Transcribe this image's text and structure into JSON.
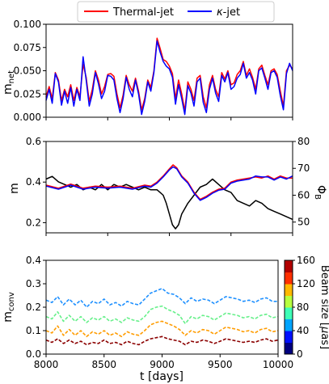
{
  "chart_data": [
    {
      "type": "line",
      "ylabel": "m",
      "ylabel_sub": "net",
      "xlim": [
        8000,
        10000
      ],
      "ylim": [
        0,
        0.1
      ],
      "yticks": [
        0.0,
        0.025,
        0.05,
        0.075,
        0.1
      ],
      "ytick_labels": [
        "0.000",
        "0.025",
        "0.050",
        "0.075",
        "0.100"
      ],
      "legend": {
        "position": "top-center",
        "entries": [
          {
            "label": "Thermal-jet",
            "color": "#ff0000"
          },
          {
            "label_greek": "κ",
            "label": "-jet",
            "color": "#0000ff"
          }
        ]
      },
      "series": [
        {
          "name": "Thermal-jet",
          "color": "#ff0000",
          "x": [
            8000,
            8025,
            8050,
            8075,
            8100,
            8125,
            8150,
            8175,
            8200,
            8225,
            8250,
            8275,
            8300,
            8325,
            8350,
            8375,
            8400,
            8425,
            8450,
            8475,
            8500,
            8525,
            8550,
            8575,
            8600,
            8625,
            8650,
            8675,
            8700,
            8725,
            8750,
            8775,
            8800,
            8825,
            8850,
            8875,
            8900,
            8925,
            8950,
            8975,
            9000,
            9025,
            9050,
            9075,
            9100,
            9125,
            9150,
            9175,
            9200,
            9225,
            9250,
            9275,
            9300,
            9325,
            9350,
            9375,
            9400,
            9425,
            9450,
            9475,
            9500,
            9525,
            9550,
            9575,
            9600,
            9625,
            9650,
            9675,
            9700,
            9725,
            9750,
            9775,
            9800,
            9825,
            9850,
            9875,
            9900,
            9925,
            9950,
            9975,
            10000
          ],
          "values": [
            0.022,
            0.033,
            0.02,
            0.048,
            0.04,
            0.018,
            0.03,
            0.022,
            0.035,
            0.018,
            0.032,
            0.022,
            0.057,
            0.043,
            0.017,
            0.03,
            0.05,
            0.04,
            0.025,
            0.033,
            0.046,
            0.047,
            0.044,
            0.025,
            0.01,
            0.024,
            0.045,
            0.035,
            0.028,
            0.042,
            0.028,
            0.008,
            0.02,
            0.04,
            0.032,
            0.05,
            0.085,
            0.074,
            0.062,
            0.06,
            0.055,
            0.047,
            0.02,
            0.04,
            0.025,
            0.007,
            0.038,
            0.03,
            0.018,
            0.042,
            0.045,
            0.022,
            0.01,
            0.035,
            0.045,
            0.03,
            0.022,
            0.048,
            0.041,
            0.05,
            0.035,
            0.037,
            0.046,
            0.05,
            0.06,
            0.045,
            0.052,
            0.043,
            0.03,
            0.052,
            0.056,
            0.045,
            0.035,
            0.05,
            0.052,
            0.046,
            0.028,
            0.012,
            0.05,
            0.056,
            0.052
          ]
        },
        {
          "name": "-jet",
          "color": "#0000ff",
          "x": [
            8000,
            8025,
            8050,
            8075,
            8100,
            8125,
            8150,
            8175,
            8200,
            8225,
            8250,
            8275,
            8300,
            8325,
            8350,
            8375,
            8400,
            8425,
            8450,
            8475,
            8500,
            8525,
            8550,
            8575,
            8600,
            8625,
            8650,
            8675,
            8700,
            8725,
            8750,
            8775,
            8800,
            8825,
            8850,
            8875,
            8900,
            8925,
            8950,
            8975,
            9000,
            9025,
            9050,
            9075,
            9100,
            9125,
            9150,
            9175,
            9200,
            9225,
            9250,
            9275,
            9300,
            9325,
            9350,
            9375,
            9400,
            9425,
            9450,
            9475,
            9500,
            9525,
            9550,
            9575,
            9600,
            9625,
            9650,
            9675,
            9700,
            9725,
            9750,
            9775,
            9800,
            9825,
            9850,
            9875,
            9900,
            9925,
            9950,
            9975,
            10000
          ],
          "values": [
            0.018,
            0.03,
            0.015,
            0.047,
            0.038,
            0.013,
            0.028,
            0.015,
            0.032,
            0.012,
            0.03,
            0.018,
            0.065,
            0.04,
            0.012,
            0.025,
            0.048,
            0.036,
            0.02,
            0.028,
            0.045,
            0.044,
            0.04,
            0.02,
            0.005,
            0.02,
            0.043,
            0.03,
            0.022,
            0.04,
            0.025,
            0.003,
            0.017,
            0.038,
            0.028,
            0.048,
            0.082,
            0.07,
            0.06,
            0.055,
            0.052,
            0.043,
            0.014,
            0.035,
            0.02,
            0.003,
            0.034,
            0.026,
            0.012,
            0.038,
            0.042,
            0.016,
            0.005,
            0.03,
            0.042,
            0.026,
            0.017,
            0.045,
            0.038,
            0.048,
            0.03,
            0.033,
            0.042,
            0.046,
            0.058,
            0.042,
            0.048,
            0.04,
            0.025,
            0.05,
            0.053,
            0.042,
            0.03,
            0.048,
            0.05,
            0.043,
            0.023,
            0.008,
            0.047,
            0.058,
            0.05
          ]
        }
      ]
    },
    {
      "type": "line",
      "ylabel": "m",
      "ylabel_right": "Φ",
      "ylabel_right_sub": "B",
      "xlim": [
        8000,
        10000
      ],
      "ylim": [
        0.15,
        0.6
      ],
      "yticks": [
        0.2,
        0.4,
        0.6
      ],
      "ytick_labels": [
        "0.2",
        "0.4",
        "0.6"
      ],
      "ylim_right": [
        46,
        80
      ],
      "yticks_right": [
        50,
        60,
        70,
        80
      ],
      "ytick_labels_right": [
        "50",
        "60",
        "70",
        "80"
      ],
      "series": [
        {
          "name": "Thermal-jet m",
          "color": "#ff0000",
          "axis": "left",
          "x": [
            8000,
            8100,
            8200,
            8300,
            8400,
            8500,
            8600,
            8700,
            8800,
            8850,
            8900,
            8950,
            9000,
            9030,
            9060,
            9100,
            9150,
            9200,
            9250,
            9300,
            9350,
            9400,
            9450,
            9500,
            9550,
            9600,
            9650,
            9700,
            9750,
            9800,
            9850,
            9900,
            9950,
            10000
          ],
          "values": [
            0.385,
            0.37,
            0.39,
            0.37,
            0.38,
            0.375,
            0.38,
            0.37,
            0.385,
            0.38,
            0.4,
            0.43,
            0.465,
            0.485,
            0.47,
            0.43,
            0.4,
            0.35,
            0.315,
            0.33,
            0.35,
            0.365,
            0.37,
            0.4,
            0.41,
            0.415,
            0.42,
            0.425,
            0.42,
            0.43,
            0.415,
            0.43,
            0.42,
            0.42
          ]
        },
        {
          "name": "κ-jet m",
          "color": "#0000ff",
          "axis": "left",
          "x": [
            8000,
            8100,
            8200,
            8300,
            8400,
            8500,
            8600,
            8700,
            8800,
            8850,
            8900,
            8950,
            9000,
            9030,
            9060,
            9100,
            9150,
            9200,
            9250,
            9300,
            9350,
            9400,
            9450,
            9500,
            9550,
            9600,
            9650,
            9700,
            9750,
            9800,
            9850,
            9900,
            9950,
            10000
          ],
          "values": [
            0.38,
            0.365,
            0.385,
            0.365,
            0.375,
            0.37,
            0.375,
            0.365,
            0.38,
            0.375,
            0.395,
            0.425,
            0.46,
            0.475,
            0.465,
            0.425,
            0.395,
            0.345,
            0.31,
            0.325,
            0.345,
            0.36,
            0.365,
            0.395,
            0.405,
            0.41,
            0.415,
            0.43,
            0.425,
            0.425,
            0.41,
            0.425,
            0.415,
            0.43
          ]
        },
        {
          "name": "Φ_B",
          "color": "#000000",
          "axis": "right",
          "x": [
            8000,
            8050,
            8100,
            8150,
            8200,
            8250,
            8300,
            8350,
            8400,
            8450,
            8500,
            8550,
            8600,
            8650,
            8700,
            8750,
            8800,
            8850,
            8900,
            8925,
            8950,
            8975,
            9000,
            9025,
            9050,
            9075,
            9100,
            9150,
            9200,
            9250,
            9300,
            9350,
            9400,
            9450,
            9500,
            9550,
            9600,
            9650,
            9700,
            9750,
            9800,
            9850,
            9900,
            9950,
            10000
          ],
          "values": [
            66,
            67,
            65,
            64,
            63,
            64,
            62,
            63,
            62,
            64,
            62,
            64,
            63,
            64,
            63,
            62,
            63,
            62,
            62,
            61,
            60,
            57,
            53,
            49,
            47.5,
            49,
            53,
            57,
            60,
            63,
            64,
            66,
            64,
            62,
            61,
            58,
            57,
            56,
            58,
            57,
            55,
            54,
            53,
            52,
            51
          ]
        }
      ]
    },
    {
      "type": "line",
      "ylabel": "m",
      "ylabel_sub": "conv",
      "xlabel": "t [days]",
      "xlim": [
        8000,
        10000
      ],
      "ylim": [
        0,
        0.4
      ],
      "xticks": [
        8000,
        8500,
        9000,
        9500,
        10000
      ],
      "xtick_labels": [
        "8000",
        "8500",
        "9000",
        "9500",
        "10000"
      ],
      "yticks": [
        0.0,
        0.1,
        0.2,
        0.3,
        0.4
      ],
      "ytick_labels": [
        "0.0",
        "0.1",
        "0.2",
        "0.3",
        "0.4"
      ],
      "colorbar": {
        "label_prefix": "Beam size [",
        "label_greek": "μ",
        "label_suffix": "as]",
        "ticks": [
          0,
          20,
          40,
          60,
          80,
          100,
          120,
          140,
          160
        ],
        "tick_labels": [
          "0",
          "20",
          "40",
          "60",
          "80",
          "100",
          "120",
          "140",
          "160"
        ],
        "colors": [
          "#00007f",
          "#0010ff",
          "#00a4ff",
          "#3fffb7",
          "#b7ff3f",
          "#ffb900",
          "#ff3000",
          "#b20000"
        ]
      },
      "series": [
        {
          "name": "beam ~25",
          "color": "#1e90ff",
          "x": [
            8000,
            8050,
            8100,
            8150,
            8200,
            8250,
            8300,
            8350,
            8400,
            8450,
            8500,
            8550,
            8600,
            8650,
            8700,
            8750,
            8800,
            8850,
            8900,
            8950,
            9000,
            9050,
            9100,
            9150,
            9200,
            9250,
            9300,
            9350,
            9400,
            9450,
            9500,
            9550,
            9600,
            9650,
            9700,
            9750,
            9800,
            9850,
            9900,
            9950,
            10000
          ],
          "values": [
            0.23,
            0.22,
            0.245,
            0.21,
            0.235,
            0.21,
            0.23,
            0.2,
            0.225,
            0.215,
            0.235,
            0.21,
            0.22,
            0.205,
            0.225,
            0.215,
            0.21,
            0.235,
            0.26,
            0.27,
            0.28,
            0.26,
            0.255,
            0.24,
            0.215,
            0.24,
            0.225,
            0.235,
            0.23,
            0.215,
            0.23,
            0.245,
            0.24,
            0.235,
            0.225,
            0.23,
            0.22,
            0.235,
            0.24,
            0.225,
            0.225
          ]
        },
        {
          "name": "beam ~45",
          "color": "#66f08a",
          "x": [
            8000,
            8050,
            8100,
            8150,
            8200,
            8250,
            8300,
            8350,
            8400,
            8450,
            8500,
            8550,
            8600,
            8650,
            8700,
            8750,
            8800,
            8850,
            8900,
            8950,
            9000,
            9050,
            9100,
            9150,
            9200,
            9250,
            9300,
            9350,
            9400,
            9450,
            9500,
            9550,
            9600,
            9650,
            9700,
            9750,
            9800,
            9850,
            9900,
            9950,
            10000
          ],
          "values": [
            0.16,
            0.15,
            0.18,
            0.14,
            0.165,
            0.14,
            0.16,
            0.135,
            0.155,
            0.145,
            0.16,
            0.14,
            0.15,
            0.135,
            0.155,
            0.145,
            0.14,
            0.16,
            0.19,
            0.2,
            0.205,
            0.19,
            0.18,
            0.165,
            0.13,
            0.16,
            0.15,
            0.165,
            0.16,
            0.145,
            0.16,
            0.175,
            0.17,
            0.165,
            0.155,
            0.16,
            0.15,
            0.165,
            0.17,
            0.155,
            0.16
          ]
        },
        {
          "name": "beam ~75",
          "color": "#ff9c00",
          "x": [
            8000,
            8050,
            8100,
            8150,
            8200,
            8250,
            8300,
            8350,
            8400,
            8450,
            8500,
            8550,
            8600,
            8650,
            8700,
            8750,
            8800,
            8850,
            8900,
            8950,
            9000,
            9050,
            9100,
            9150,
            9200,
            9250,
            9300,
            9350,
            9400,
            9450,
            9500,
            9550,
            9600,
            9650,
            9700,
            9750,
            9800,
            9850,
            9900,
            9950,
            10000
          ],
          "values": [
            0.1,
            0.09,
            0.12,
            0.08,
            0.105,
            0.08,
            0.1,
            0.075,
            0.095,
            0.085,
            0.1,
            0.08,
            0.09,
            0.075,
            0.095,
            0.085,
            0.08,
            0.1,
            0.125,
            0.135,
            0.14,
            0.13,
            0.12,
            0.105,
            0.08,
            0.1,
            0.09,
            0.105,
            0.1,
            0.085,
            0.1,
            0.115,
            0.11,
            0.105,
            0.095,
            0.1,
            0.09,
            0.105,
            0.11,
            0.095,
            0.1
          ]
        },
        {
          "name": "beam ~150",
          "color": "#8b0000",
          "x": [
            8000,
            8050,
            8100,
            8150,
            8200,
            8250,
            8300,
            8350,
            8400,
            8450,
            8500,
            8550,
            8600,
            8650,
            8700,
            8750,
            8800,
            8850,
            8900,
            8950,
            9000,
            9050,
            9100,
            9150,
            9200,
            9250,
            9300,
            9350,
            9400,
            9450,
            9500,
            9550,
            9600,
            9650,
            9700,
            9750,
            9800,
            9850,
            9900,
            9950,
            10000
          ],
          "values": [
            0.06,
            0.05,
            0.065,
            0.045,
            0.06,
            0.045,
            0.055,
            0.04,
            0.05,
            0.045,
            0.06,
            0.045,
            0.05,
            0.04,
            0.055,
            0.045,
            0.04,
            0.055,
            0.065,
            0.07,
            0.075,
            0.065,
            0.06,
            0.055,
            0.04,
            0.055,
            0.05,
            0.06,
            0.055,
            0.045,
            0.055,
            0.065,
            0.06,
            0.055,
            0.05,
            0.055,
            0.05,
            0.06,
            0.065,
            0.055,
            0.06
          ]
        }
      ]
    }
  ]
}
